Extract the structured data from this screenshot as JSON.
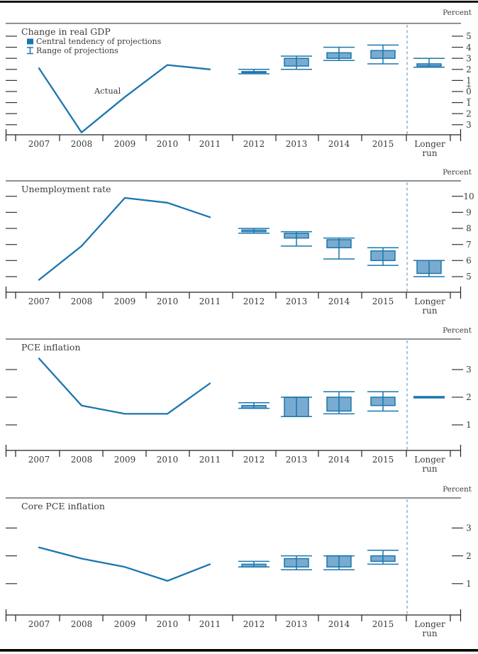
{
  "figure": {
    "x_labels": [
      "2007",
      "2008",
      "2009",
      "2010",
      "2011",
      "2012",
      "2013",
      "2014",
      "2015",
      "Longer run"
    ],
    "longer_run_lines": [
      "Longer",
      "run"
    ],
    "colors": {
      "line": "#1b76ae",
      "box_fill": "#79abd0",
      "separator": "#7cafd2",
      "axis": "#222222",
      "text": "#3b3b3b",
      "rule": "#000000"
    }
  },
  "chart_data": [
    {
      "type": "line-with-projection-ranges",
      "title": "Change in real GDP",
      "unit_label": "Percent",
      "actual_label": "Actual",
      "legend": [
        {
          "icon": "central-tendency-swatch-icon",
          "label": "Central tendency of projections"
        },
        {
          "icon": "range-i-beam-icon",
          "label": "Range of projections"
        }
      ],
      "ylim": [
        -3.9,
        6.2
      ],
      "y_ticks": [
        {
          "value": 5,
          "label": "5"
        },
        {
          "value": 4,
          "label": "4"
        },
        {
          "value": 3,
          "label": "3"
        },
        {
          "value": 2,
          "label": "2"
        },
        {
          "value": 1,
          "label": "1"
        },
        {
          "value": 0,
          "label": "0",
          "plus_sign": "+",
          "minus_sign": "−"
        },
        {
          "value": -1,
          "label": "1"
        },
        {
          "value": -2,
          "label": "2"
        },
        {
          "value": -3,
          "label": "3"
        }
      ],
      "actual": {
        "years": [
          "2007",
          "2008",
          "2009",
          "2010",
          "2011"
        ],
        "values": [
          2.1,
          -3.7,
          -0.5,
          2.4,
          2.0
        ]
      },
      "projections": [
        {
          "x": "2012",
          "central_tendency": [
            1.7,
            1.8
          ],
          "range": [
            1.6,
            2.0
          ]
        },
        {
          "x": "2013",
          "central_tendency": [
            2.3,
            3.0
          ],
          "range": [
            2.0,
            3.2
          ]
        },
        {
          "x": "2014",
          "central_tendency": [
            3.0,
            3.5
          ],
          "range": [
            2.8,
            4.0
          ]
        },
        {
          "x": "2015",
          "central_tendency": [
            3.0,
            3.7
          ],
          "range": [
            2.5,
            4.2
          ]
        },
        {
          "x": "Longer run",
          "central_tendency": [
            2.3,
            2.5
          ],
          "range": [
            2.2,
            3.0
          ]
        }
      ]
    },
    {
      "type": "line-with-projection-ranges",
      "title": "Unemployment rate",
      "unit_label": "Percent",
      "ylim": [
        4.0,
        11.0
      ],
      "y_ticks": [
        {
          "value": 10,
          "label": "10"
        },
        {
          "value": 9,
          "label": "9"
        },
        {
          "value": 8,
          "label": "8"
        },
        {
          "value": 7,
          "label": "7"
        },
        {
          "value": 6,
          "label": "6"
        },
        {
          "value": 5,
          "label": "5"
        }
      ],
      "actual": {
        "years": [
          "2007",
          "2008",
          "2009",
          "2010",
          "2011"
        ],
        "values": [
          4.8,
          6.9,
          9.9,
          9.6,
          8.7
        ]
      },
      "projections": [
        {
          "x": "2012",
          "central_tendency": [
            7.8,
            7.9
          ],
          "range": [
            7.7,
            8.0
          ]
        },
        {
          "x": "2013",
          "central_tendency": [
            7.4,
            7.7
          ],
          "range": [
            6.9,
            7.8
          ]
        },
        {
          "x": "2014",
          "central_tendency": [
            6.8,
            7.3
          ],
          "range": [
            6.1,
            7.4
          ]
        },
        {
          "x": "2015",
          "central_tendency": [
            6.0,
            6.6
          ],
          "range": [
            5.7,
            6.8
          ]
        },
        {
          "x": "Longer run",
          "central_tendency": [
            5.2,
            6.0
          ],
          "range": [
            5.0,
            6.0
          ]
        }
      ]
    },
    {
      "type": "line-with-projection-ranges",
      "title": "PCE inflation",
      "unit_label": "Percent",
      "ylim": [
        0.1,
        4.1
      ],
      "y_ticks": [
        {
          "value": 3,
          "label": "3"
        },
        {
          "value": 2,
          "label": "2"
        },
        {
          "value": 1,
          "label": "1"
        }
      ],
      "actual": {
        "years": [
          "2007",
          "2008",
          "2009",
          "2010",
          "2011"
        ],
        "values": [
          3.4,
          1.7,
          1.4,
          1.4,
          2.5
        ]
      },
      "projections": [
        {
          "x": "2012",
          "central_tendency": [
            1.6,
            1.7
          ],
          "range": [
            1.6,
            1.8
          ]
        },
        {
          "x": "2013",
          "central_tendency": [
            1.3,
            2.0
          ],
          "range": [
            1.3,
            2.0
          ]
        },
        {
          "x": "2014",
          "central_tendency": [
            1.5,
            2.0
          ],
          "range": [
            1.4,
            2.2
          ]
        },
        {
          "x": "2015",
          "central_tendency": [
            1.7,
            2.0
          ],
          "range": [
            1.5,
            2.2
          ]
        },
        {
          "x": "Longer run",
          "central_tendency": [
            2.0,
            2.0
          ],
          "range": [
            2.0,
            2.0
          ]
        }
      ]
    },
    {
      "type": "line-with-projection-ranges",
      "title": "Core PCE inflation",
      "unit_label": "Percent",
      "ylim": [
        -0.1,
        4.1
      ],
      "y_ticks": [
        {
          "value": 3,
          "label": "3"
        },
        {
          "value": 2,
          "label": "2"
        },
        {
          "value": 1,
          "label": "1"
        }
      ],
      "actual": {
        "years": [
          "2007",
          "2008",
          "2009",
          "2010",
          "2011"
        ],
        "values": [
          2.3,
          1.9,
          1.6,
          1.1,
          1.7
        ]
      },
      "projections": [
        {
          "x": "2012",
          "central_tendency": [
            1.6,
            1.7
          ],
          "range": [
            1.6,
            1.8
          ]
        },
        {
          "x": "2013",
          "central_tendency": [
            1.6,
            1.9
          ],
          "range": [
            1.5,
            2.0
          ]
        },
        {
          "x": "2014",
          "central_tendency": [
            1.6,
            2.0
          ],
          "range": [
            1.5,
            2.0
          ]
        },
        {
          "x": "2015",
          "central_tendency": [
            1.8,
            2.0
          ],
          "range": [
            1.7,
            2.2
          ]
        }
      ]
    }
  ]
}
